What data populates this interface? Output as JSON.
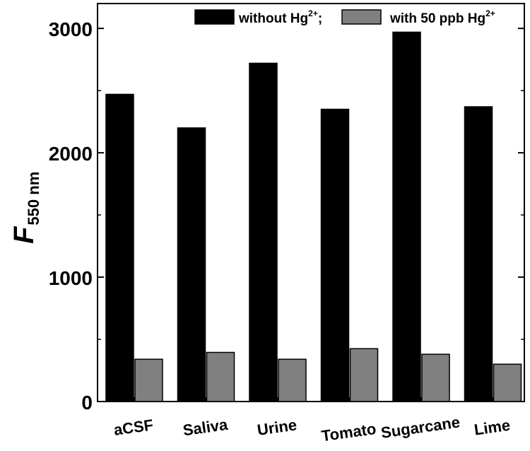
{
  "chart_data": {
    "type": "bar",
    "categories": [
      "aCSF",
      "Saliva",
      "Urine",
      "Tomato",
      "Sugarcane",
      "Lime"
    ],
    "series": [
      {
        "name": "without Hg²⁺;",
        "color": "#000000",
        "values": [
          2470,
          2200,
          2720,
          2350,
          2970,
          2370
        ]
      },
      {
        "name": "with 50 ppb Hg²⁺",
        "color": "#808080",
        "values": [
          340,
          395,
          340,
          425,
          380,
          300
        ]
      }
    ],
    "ylabel": {
      "main": "F",
      "subscript": "550 nm"
    },
    "xlabel": "",
    "ylim": [
      0,
      3200
    ],
    "yticks": [
      0,
      1000,
      2000,
      3000
    ],
    "ytick_labels": [
      "0",
      "1000",
      "2000",
      "3000"
    ],
    "legend": {
      "placement": "top",
      "entries": [
        {
          "prefix": "without Hg",
          "superscript": "2+",
          "suffix": ";"
        },
        {
          "prefix": "with 50 ppb Hg",
          "superscript": "2+",
          "suffix": ""
        }
      ]
    },
    "grid": false
  }
}
